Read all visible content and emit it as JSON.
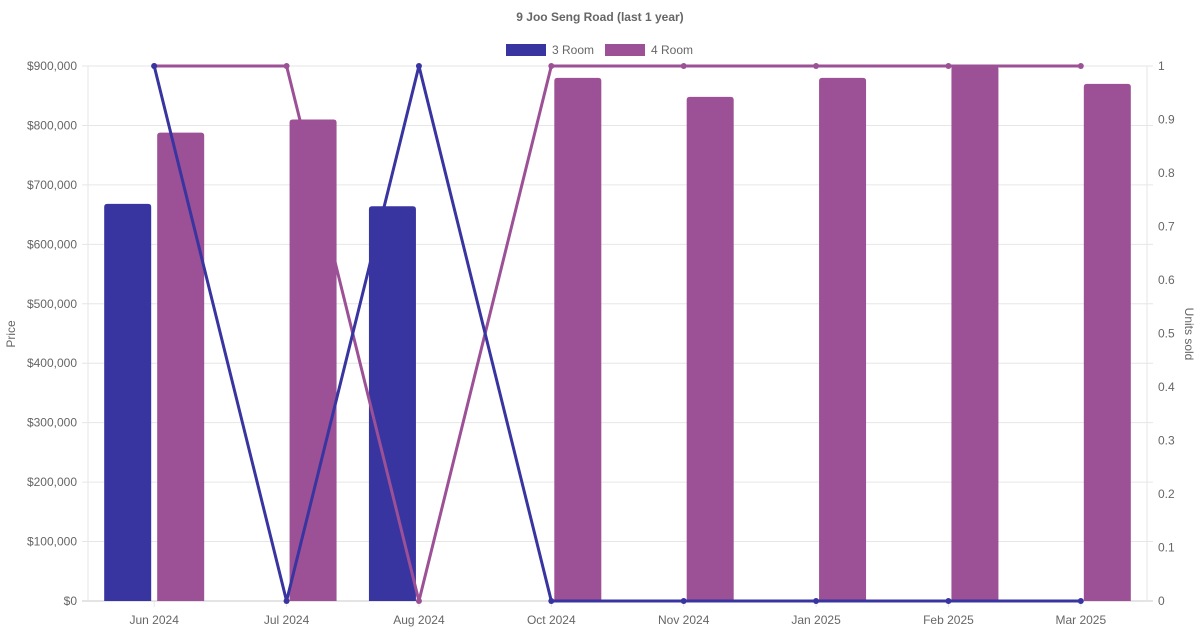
{
  "chart_data": {
    "type": "bar",
    "title": "9 Joo Seng Road (last 1 year)",
    "categories": [
      "Jun 2024",
      "Jul 2024",
      "Aug 2024",
      "Oct 2024",
      "Nov 2024",
      "Jan 2025",
      "Feb 2025",
      "Mar 2025"
    ],
    "ylabel": "Price",
    "y2label": "Units sold",
    "ylim": [
      0,
      900000
    ],
    "y2lim": [
      0,
      1
    ],
    "yticks": [
      "$0",
      "$100,000",
      "$200,000",
      "$300,000",
      "$400,000",
      "$500,000",
      "$600,000",
      "$700,000",
      "$800,000",
      "$900,000"
    ],
    "y2ticks": [
      "0",
      "0.1",
      "0.2",
      "0.3",
      "0.4",
      "0.5",
      "0.6",
      "0.7",
      "0.8",
      "0.9",
      "1"
    ],
    "grid": true,
    "legend_position": "top-center",
    "legend": [
      {
        "label": "3 Room",
        "color": "#3834a0"
      },
      {
        "label": "4 Room",
        "color": "#9c5096"
      }
    ],
    "series": [
      {
        "name": "3 Room",
        "kind": "bar",
        "axis": "price",
        "color": "#3834a0",
        "values": [
          668000,
          null,
          664000,
          null,
          null,
          null,
          null,
          null
        ]
      },
      {
        "name": "4 Room",
        "kind": "bar",
        "axis": "price",
        "color": "#9c5096",
        "values": [
          788000,
          810000,
          null,
          880000,
          848000,
          880000,
          900000,
          870000
        ]
      },
      {
        "name": "3 Room",
        "kind": "line",
        "axis": "units",
        "color": "#3834a0",
        "values": [
          1,
          0,
          1,
          0,
          0,
          0,
          0,
          0
        ]
      },
      {
        "name": "4 Room",
        "kind": "line",
        "axis": "units",
        "color": "#9c5096",
        "values": [
          1,
          1,
          0,
          1,
          1,
          1,
          1,
          1
        ]
      }
    ]
  }
}
